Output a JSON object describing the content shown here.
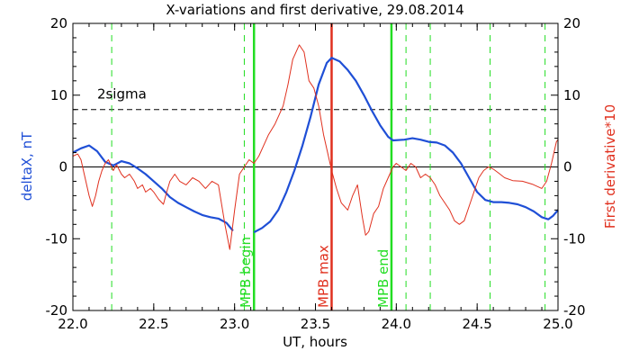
{
  "chart_data": {
    "type": "line",
    "title": "X-variations and first derivative, 29.08.2014",
    "xlabel": "UT, hours",
    "ylabel_left": "deltaX, nT",
    "ylabel_right": "First derivative*10",
    "xlim": [
      22.0,
      25.0
    ],
    "ylim": [
      -20,
      20
    ],
    "x_ticks": [
      "22.0",
      "22.5",
      "23.0",
      "23.5",
      "24.0",
      "24.5",
      "25.0"
    ],
    "y_ticks_left": [
      "-20",
      "-10",
      "0",
      "10",
      "20"
    ],
    "y_ticks_right": [
      "-20",
      "-10",
      "0",
      "10",
      "20"
    ],
    "sigma_label": "2sigma",
    "sigma_level": 8,
    "colors": {
      "deltaX": "#1f4fd6",
      "derivative": "#e0301e",
      "mpb": "#22dd22",
      "max": "#e0301e",
      "axis": "#000000"
    },
    "series": [
      {
        "name": "deltaX, nT",
        "color": "#1f4fd6",
        "segments": [
          [
            [
              22.0,
              2.0
            ],
            [
              22.05,
              2.6
            ],
            [
              22.1,
              3.0
            ],
            [
              22.15,
              2.2
            ],
            [
              22.2,
              0.7
            ],
            [
              22.25,
              0.2
            ],
            [
              22.3,
              0.8
            ],
            [
              22.35,
              0.5
            ],
            [
              22.4,
              -0.2
            ],
            [
              22.45,
              -1.0
            ],
            [
              22.5,
              -2.0
            ],
            [
              22.55,
              -3.0
            ],
            [
              22.6,
              -4.2
            ],
            [
              22.65,
              -5.0
            ],
            [
              22.7,
              -5.6
            ],
            [
              22.75,
              -6.2
            ],
            [
              22.8,
              -6.7
            ],
            [
              22.85,
              -7.0
            ],
            [
              22.9,
              -7.2
            ],
            [
              22.95,
              -7.8
            ],
            [
              22.99,
              -8.9
            ]
          ],
          [
            [
              23.12,
              -9.1
            ],
            [
              23.17,
              -8.5
            ],
            [
              23.22,
              -7.6
            ],
            [
              23.27,
              -6.0
            ],
            [
              23.32,
              -3.5
            ],
            [
              23.37,
              -0.5
            ],
            [
              23.42,
              3.0
            ],
            [
              23.47,
              7.0
            ],
            [
              23.52,
              11.5
            ],
            [
              23.57,
              14.5
            ],
            [
              23.6,
              15.2
            ],
            [
              23.65,
              14.7
            ],
            [
              23.7,
              13.5
            ],
            [
              23.75,
              12.0
            ],
            [
              23.8,
              10.0
            ],
            [
              23.85,
              7.8
            ],
            [
              23.9,
              5.8
            ],
            [
              23.95,
              4.2
            ],
            [
              23.98,
              3.7
            ],
            [
              24.05,
              3.8
            ],
            [
              24.1,
              4.0
            ],
            [
              24.15,
              3.8
            ],
            [
              24.2,
              3.5
            ],
            [
              24.25,
              3.4
            ],
            [
              24.3,
              3.0
            ],
            [
              24.35,
              2.0
            ],
            [
              24.4,
              0.5
            ],
            [
              24.45,
              -1.5
            ],
            [
              24.5,
              -3.5
            ],
            [
              24.55,
              -4.6
            ],
            [
              24.6,
              -4.9
            ],
            [
              24.65,
              -4.9
            ],
            [
              24.7,
              -5.0
            ],
            [
              24.75,
              -5.2
            ],
            [
              24.8,
              -5.6
            ],
            [
              24.85,
              -6.2
            ],
            [
              24.9,
              -7.0
            ],
            [
              24.94,
              -7.3
            ],
            [
              24.97,
              -6.8
            ],
            [
              25.0,
              -6.0
            ]
          ]
        ]
      },
      {
        "name": "First derivative*10",
        "color": "#e0301e",
        "segments": [
          [
            [
              22.0,
              1.5
            ],
            [
              22.03,
              1.8
            ],
            [
              22.05,
              1.0
            ],
            [
              22.07,
              -1.0
            ],
            [
              22.1,
              -4.0
            ],
            [
              22.12,
              -5.5
            ],
            [
              22.14,
              -4.0
            ],
            [
              22.16,
              -2.0
            ],
            [
              22.18,
              -0.5
            ],
            [
              22.2,
              0.5
            ],
            [
              22.22,
              1.0
            ],
            [
              22.25,
              -0.5
            ],
            [
              22.27,
              0.3
            ],
            [
              22.3,
              -1.0
            ],
            [
              22.32,
              -1.5
            ],
            [
              22.35,
              -1.0
            ],
            [
              22.38,
              -2.0
            ],
            [
              22.4,
              -3.0
            ],
            [
              22.43,
              -2.5
            ],
            [
              22.45,
              -3.5
            ],
            [
              22.48,
              -3.0
            ],
            [
              22.5,
              -3.5
            ],
            [
              22.53,
              -4.5
            ],
            [
              22.56,
              -5.2
            ],
            [
              22.58,
              -3.5
            ],
            [
              22.6,
              -2.0
            ],
            [
              22.63,
              -1.0
            ],
            [
              22.66,
              -2.0
            ],
            [
              22.7,
              -2.5
            ],
            [
              22.74,
              -1.5
            ],
            [
              22.78,
              -2.0
            ],
            [
              22.82,
              -3.0
            ],
            [
              22.86,
              -2.0
            ],
            [
              22.9,
              -2.5
            ],
            [
              22.94,
              -8.0
            ],
            [
              22.97,
              -11.5
            ],
            [
              23.0,
              -6.0
            ],
            [
              23.03,
              -1.0
            ],
            [
              23.06,
              0.0
            ],
            [
              23.09,
              1.0
            ],
            [
              23.12,
              0.5
            ],
            [
              23.15,
              1.5
            ],
            [
              23.18,
              3.0
            ],
            [
              23.21,
              4.5
            ],
            [
              23.25,
              6.0
            ],
            [
              23.3,
              8.5
            ],
            [
              23.33,
              11.5
            ],
            [
              23.36,
              15.0
            ],
            [
              23.4,
              17.0
            ],
            [
              23.43,
              16.0
            ],
            [
              23.46,
              12.0
            ],
            [
              23.49,
              11.0
            ],
            [
              23.52,
              8.5
            ],
            [
              23.55,
              4.5
            ],
            [
              23.58,
              1.5
            ],
            [
              23.6,
              -0.5
            ],
            [
              23.63,
              -3.0
            ],
            [
              23.66,
              -5.0
            ],
            [
              23.7,
              -6.0
            ],
            [
              23.73,
              -4.0
            ],
            [
              23.76,
              -2.5
            ],
            [
              23.79,
              -7.0
            ],
            [
              23.81,
              -9.5
            ],
            [
              23.83,
              -9.0
            ],
            [
              23.86,
              -6.5
            ],
            [
              23.89,
              -5.5
            ],
            [
              23.92,
              -3.0
            ],
            [
              23.95,
              -1.5
            ],
            [
              23.98,
              0.0
            ],
            [
              24.0,
              0.5
            ],
            [
              24.03,
              0.0
            ],
            [
              24.06,
              -0.5
            ],
            [
              24.09,
              0.5
            ],
            [
              24.12,
              0.0
            ],
            [
              24.15,
              -1.5
            ],
            [
              24.18,
              -1.0
            ],
            [
              24.21,
              -1.5
            ],
            [
              24.24,
              -2.5
            ],
            [
              24.27,
              -4.0
            ],
            [
              24.3,
              -5.0
            ],
            [
              24.33,
              -6.0
            ],
            [
              24.36,
              -7.5
            ],
            [
              24.39,
              -8.0
            ],
            [
              24.42,
              -7.5
            ],
            [
              24.45,
              -5.5
            ],
            [
              24.48,
              -3.5
            ],
            [
              24.51,
              -1.5
            ],
            [
              24.54,
              -0.5
            ],
            [
              24.57,
              0.0
            ],
            [
              24.6,
              -0.3
            ],
            [
              24.63,
              -0.8
            ],
            [
              24.67,
              -1.5
            ],
            [
              24.72,
              -1.9
            ],
            [
              24.78,
              -2.0
            ],
            [
              24.84,
              -2.4
            ],
            [
              24.9,
              -3.0
            ],
            [
              24.93,
              -2.0
            ],
            [
              24.96,
              0.5
            ],
            [
              24.99,
              3.5
            ],
            [
              25.0,
              3.8
            ]
          ]
        ]
      }
    ],
    "vertical_markers": [
      {
        "x": 23.12,
        "label": "MPB begin",
        "color": "#22dd22"
      },
      {
        "x": 23.6,
        "label": "MPB max",
        "color": "#e0301e"
      },
      {
        "x": 23.97,
        "label": "MPB end",
        "color": "#22dd22"
      }
    ],
    "dashed_markers": [
      22.24,
      23.06,
      24.06,
      24.21,
      24.58,
      24.92
    ]
  }
}
